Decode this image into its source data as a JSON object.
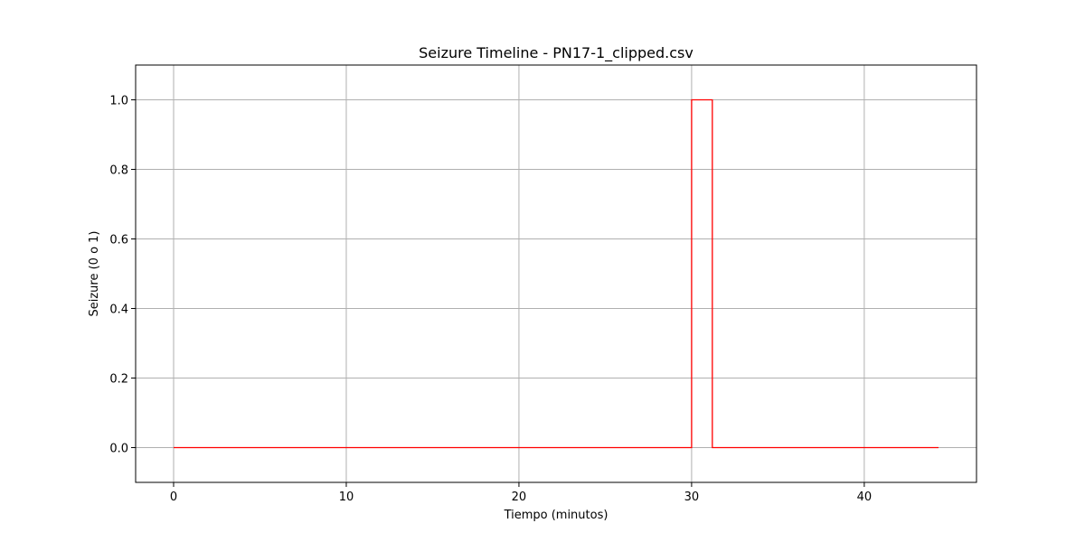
{
  "chart_data": {
    "type": "line",
    "title": "Seizure Timeline - PN17-1_clipped.csv",
    "xlabel": "Tiempo (minutos)",
    "ylabel": "Seizure (0 o 1)",
    "xlim": [
      -2.2,
      46.5
    ],
    "ylim": [
      -0.1,
      1.1
    ],
    "xticks": [
      0,
      10,
      20,
      30,
      40
    ],
    "yticks": [
      0.0,
      0.2,
      0.4,
      0.6,
      0.8,
      1.0
    ],
    "xtick_labels": [
      "0",
      "10",
      "20",
      "30",
      "40"
    ],
    "ytick_labels": [
      "0.0",
      "0.2",
      "0.4",
      "0.6",
      "0.8",
      "1.0"
    ],
    "grid": true,
    "series": [
      {
        "color": "#ff0000",
        "step": true,
        "x": [
          0,
          30.0,
          30.0,
          31.2,
          31.2,
          44.3
        ],
        "y": [
          0,
          0,
          1,
          1,
          0,
          0
        ]
      }
    ]
  }
}
